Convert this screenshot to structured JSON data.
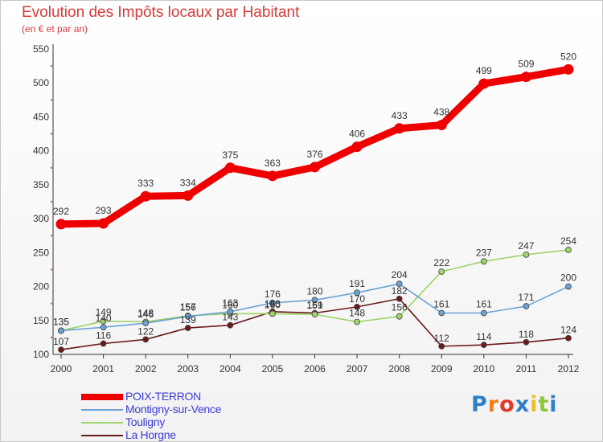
{
  "title": "Evolution des Impôts locaux par Habitant",
  "subtitle": "(en € et par an)",
  "logo": {
    "text": "Proxiti",
    "letters": [
      "P",
      "r",
      "o",
      "x",
      "i",
      "t",
      "i"
    ],
    "colors": [
      "#2f7fc8",
      "#ef7d1a",
      "#e23a2a",
      "#2f7fc8",
      "#e6c12a",
      "#8fc43c",
      "#2f7fc8"
    ]
  },
  "chart_data": {
    "type": "line",
    "title": "Evolution des Impôts locaux par Habitant",
    "subtitle": "(en € et par an)",
    "x": [
      "2000",
      "2001",
      "2002",
      "2003",
      "2004",
      "2005",
      "2006",
      "2007",
      "2008",
      "2009",
      "2010",
      "2011",
      "2012"
    ],
    "ylim": [
      100,
      550
    ],
    "yticks": [
      "100",
      "150",
      "200",
      "250",
      "300",
      "350",
      "400",
      "450",
      "500",
      "550"
    ],
    "grid": false,
    "legend": "bottom-left",
    "series": [
      {
        "name": "POIX-TERRON",
        "color": "#ee0000",
        "labelColor": "#3b3bd6",
        "values": [
          292,
          293,
          333,
          334,
          375,
          363,
          376,
          406,
          433,
          438,
          499,
          509,
          520
        ],
        "labels": [
          "292",
          "293",
          "333",
          "334",
          "375",
          "363",
          "376",
          "406",
          "433",
          "438",
          "499",
          "509",
          "520"
        ]
      },
      {
        "name": "Montigny-sur-Vence",
        "color": "#6aa3d4",
        "labelColor": "#3b3bd6",
        "values": [
          135,
          140,
          146,
          156,
          163,
          176,
          180,
          191,
          204,
          161,
          161,
          171,
          200
        ],
        "labels": [
          "135",
          "140",
          "146",
          "156",
          "163",
          "176",
          "180",
          "191",
          "204",
          "161",
          "161",
          "171",
          "200"
        ]
      },
      {
        "name": "Touligny",
        "color": "#9ed46a",
        "labelColor": "#3b3bd6",
        "values": [
          135,
          149,
          148,
          157,
          160,
          160,
          159,
          148,
          156,
          222,
          237,
          247,
          254
        ],
        "labels": [
          "135",
          "149",
          "148",
          "157",
          "160",
          "160",
          "159",
          "148",
          "156",
          "222",
          "237",
          "247",
          "254"
        ]
      },
      {
        "name": "La Horgne",
        "color": "#6b1a1a",
        "labelColor": "#3b3bd6",
        "values": [
          107,
          116,
          122,
          139,
          143,
          163,
          161,
          170,
          182,
          112,
          114,
          118,
          124
        ],
        "labels": [
          "107",
          "116",
          "122",
          "139",
          "143",
          "163",
          "161",
          "170",
          "182",
          "112",
          "114",
          "118",
          "124"
        ]
      }
    ]
  }
}
